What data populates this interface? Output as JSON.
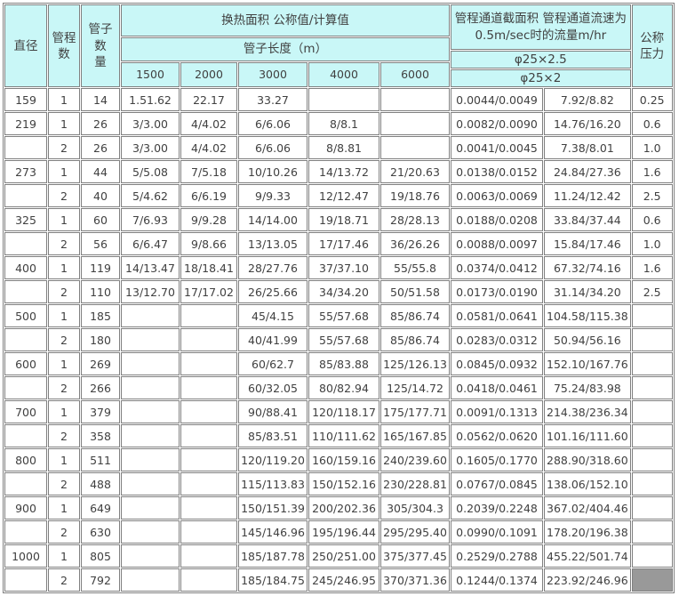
{
  "colors": {
    "header_bg": "#c9f7f7",
    "grid_border": "#808080",
    "text": "#404040",
    "shaded_cell_bg": "#999999",
    "table_bg": "#ffffff"
  },
  "table": {
    "header": {
      "diameter": "直径",
      "passes": "管程\n数",
      "tube_count": "管子数\n量",
      "heat_area": "换热面积 公称值/计算值",
      "tube_length": "管子长度（m）",
      "lengths": [
        "1500",
        "2000",
        "3000",
        "4000",
        "6000"
      ],
      "channel_info": "管程通道截面积 管程通道流速为\n0.5m/sec时的流量m/hr",
      "phi_row1": "φ25×2.5",
      "phi_row2": "φ25×2",
      "nominal_pressure": "公称\n压力"
    },
    "rows": [
      [
        "159",
        "1",
        "14",
        "1.51.62",
        "22.17",
        "33.27",
        "",
        "",
        "0.0044/0.0049",
        "7.92/8.82",
        "0.25"
      ],
      [
        "219",
        "1",
        "26",
        "3/3.00",
        "4/4.02",
        "6/6.06",
        "8/8.1",
        "",
        "0.0082/0.0090",
        "14.76/16.20",
        "0.6"
      ],
      [
        "",
        "2",
        "26",
        "3/3.00",
        "4/4.02",
        "6/6.06",
        "8/8.81",
        "",
        "0.0041/0.0045",
        "7.38/8.01",
        "1.0"
      ],
      [
        "273",
        "1",
        "44",
        "5/5.08",
        "7/5.18",
        "10/10.26",
        "14/13.72",
        "21/20.63",
        "0.0138/0.0152",
        "24.84/27.36",
        "1.6"
      ],
      [
        "",
        "2",
        "40",
        "5/4.62",
        "6/6.19",
        "9/9.33",
        "12/12.47",
        "19/18.76",
        "0.0063/0.0069",
        "11.24/12.42",
        "2.5"
      ],
      [
        "325",
        "1",
        "60",
        "7/6.93",
        "9/9.28",
        "14/14.00",
        "19/18.71",
        "28/28.13",
        "0.0188/0.0208",
        "33.84/37.44",
        "0.6"
      ],
      [
        "",
        "2",
        "56",
        "6/6.47",
        "9/8.66",
        "13/13.05",
        "17/17.46",
        "36/26.26",
        "0.0088/0.0097",
        "15.84/17.46",
        "1.0"
      ],
      [
        "400",
        "1",
        "119",
        "14/13.47",
        "18/18.41",
        "28/27.76",
        "37/37.10",
        "55/55.8",
        "0.0374/0.0412",
        "67.32/74.16",
        "1.6"
      ],
      [
        "",
        "2",
        "110",
        "13/12.70",
        "17/17.02",
        "26/25.66",
        "34/34.20",
        "50/51.58",
        "0.0173/0.0190",
        "31.14/34.20",
        "2.5"
      ],
      [
        "500",
        "1",
        "185",
        "",
        "",
        "45/4.15",
        "55/57.68",
        "85/86.74",
        "0.0581/0.0641",
        "104.58/115.38",
        ""
      ],
      [
        "",
        "2",
        "180",
        "",
        "",
        "40/41.99",
        "55/57.68",
        "85/86.74",
        "0.0283/0.0312",
        "50.94/56.16",
        ""
      ],
      [
        "600",
        "1",
        "269",
        "",
        "",
        "60/62.7",
        "85/83.88",
        "125/126.13",
        "0.0845/0.0932",
        "152.10/167.76",
        ""
      ],
      [
        "",
        "2",
        "266",
        "",
        "",
        "60/32.05",
        "80/82.94",
        "125/14.72",
        "0.0418/0.0461",
        "75.24/83.98",
        ""
      ],
      [
        "700",
        "1",
        "379",
        "",
        "",
        "90/88.41",
        "120/118.17",
        "175/177.71",
        "0.0091/0.1313",
        "214.38/236.34",
        ""
      ],
      [
        "",
        "2",
        "358",
        "",
        "",
        "85/83.51",
        "110/111.62",
        "165/167.85",
        "0.0562/0.0620",
        "101.16/111.60",
        ""
      ],
      [
        "800",
        "1",
        "511",
        "",
        "",
        "120/119.20",
        "160/159.16",
        "240/239.60",
        "0.1605/0.1770",
        "288.90/318.60",
        ""
      ],
      [
        "",
        "2",
        "488",
        "",
        "",
        "115/113.83",
        "150/152.16",
        "230/228.81",
        "0.0767/0.0845",
        "138.06/152.10",
        ""
      ],
      [
        "900",
        "1",
        "649",
        "",
        "",
        "150/151.39",
        "200/202.36",
        "305/304.3",
        "0.2039/0.2248",
        "367.02/404.46",
        ""
      ],
      [
        "",
        "2",
        "630",
        "",
        "",
        "145/146.96",
        "195/196.44",
        "295/295.40",
        "0.0990/0.1091",
        "178.20/196.38",
        ""
      ],
      [
        "1000",
        "1",
        "805",
        "",
        "",
        "185/187.78",
        "250/251.00",
        "375/377.45",
        "0.2529/0.2788",
        "455.22/501.74",
        ""
      ],
      [
        "",
        "2",
        "792",
        "",
        "",
        "185/184.75",
        "245/246.95",
        "370/371.36",
        "0.1244/0.1374",
        "223.92/246.96",
        ""
      ]
    ],
    "shaded_cell": {
      "row": 20,
      "col": 10
    }
  }
}
